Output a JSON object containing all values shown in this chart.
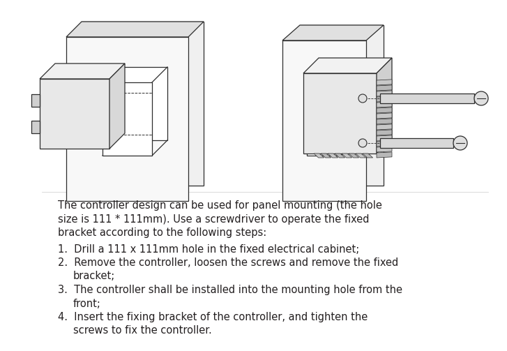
{
  "background_color": "#ffffff",
  "text_color": "#231f20",
  "fig_width": 7.27,
  "fig_height": 5.03,
  "dpi": 100,
  "line_color": "#2d2d2d",
  "lw": 0.9,
  "para_line1": "The controller design can be used for panel mounting (the hole",
  "para_line2": "size is 111 * 111mm). Use a screwdriver to operate the fixed",
  "para_line3": "bracket according to the following steps:",
  "step1": "1.  Drill a 111 x 111mm hole in the fixed electrical cabinet;",
  "step2a": "2.  Remove the controller, loosen the screws and remove the fixed",
  "step2b": "bracket;",
  "step3a": "3.  The controller shall be installed into the mounting hole from the",
  "step3b": "front;",
  "step4a": "4.  Insert the fixing bracket of the controller, and tighten the",
  "step4b": "screws to fix the controller."
}
